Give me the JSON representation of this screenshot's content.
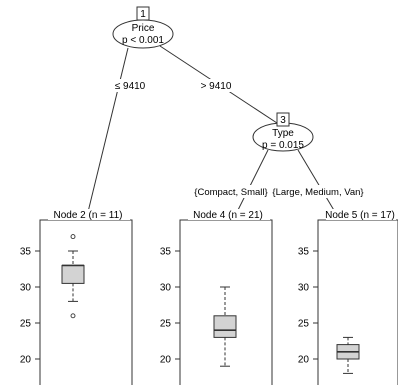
{
  "inner_nodes": [
    {
      "id": "1",
      "variable": "Price",
      "pvalue": "p < 0.001"
    },
    {
      "id": "3",
      "variable": "Type",
      "pvalue": "p = 0.015"
    }
  ],
  "edges": {
    "price_left": "≤ 9410",
    "price_right": "> 9410",
    "type_left": "{Compact, Small}",
    "type_right": "{Large, Medium, Van}"
  },
  "y_axis_ticks": [
    20,
    25,
    30,
    35
  ],
  "terminal_nodes": [
    {
      "label": "Node 2 (n = 11)",
      "whisker_low": 28,
      "q1": 30.5,
      "median": 33,
      "q3": 33,
      "whisker_high": 35,
      "outliers": [
        26,
        37
      ]
    },
    {
      "label": "Node 4 (n = 21)",
      "whisker_low": 19,
      "q1": 23,
      "median": 24,
      "q3": 26,
      "whisker_high": 30,
      "outliers": []
    },
    {
      "label": "Node 5 (n = 17)",
      "whisker_low": 18,
      "q1": 20,
      "median": 21,
      "q3": 22,
      "whisker_high": 23,
      "outliers": []
    }
  ]
}
